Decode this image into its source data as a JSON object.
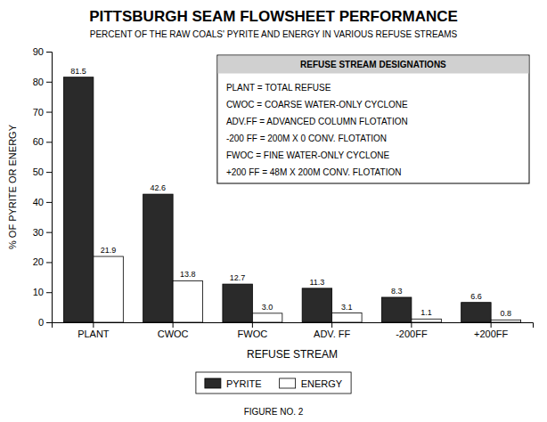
{
  "chart_data": {
    "type": "bar",
    "title": "PITTSBURGH SEAM FLOWSHEET PERFORMANCE",
    "subtitle": "PERCENT OF THE RAW COALS' PYRITE AND ENERGY IN VARIOUS REFUSE STREAMS",
    "categories": [
      "PLANT",
      "CWOC",
      "FWOC",
      "ADV. FF",
      "-200FF",
      "+200FF"
    ],
    "series": [
      {
        "name": "PYRITE",
        "color": "#2a2a2a",
        "values": [
          81.5,
          42.6,
          12.7,
          11.3,
          8.3,
          6.6
        ]
      },
      {
        "name": "ENERGY",
        "color": "#ffffff",
        "values": [
          21.9,
          13.8,
          3.0,
          3.1,
          1.1,
          0.8
        ],
        "value_labels": [
          "21.9",
          "13.8",
          "3.0",
          "3.1",
          "1.1",
          "0.8"
        ]
      }
    ],
    "ylabel": "% OF PYRITE OR ENERGY",
    "xlabel": "REFUSE STREAM",
    "ylim": [
      0,
      90
    ],
    "yticks": [
      0,
      10,
      20,
      30,
      40,
      50,
      60,
      70,
      80,
      90
    ],
    "data_labels": true,
    "legend": "bottom",
    "annotations": {
      "title": "REFUSE STREAM DESIGNATIONS",
      "lines": [
        "PLANT = TOTAL REFUSE",
        "CWOC = COARSE WATER-ONLY CYCLONE",
        "ADV.FF = ADVANCED COLUMN FLOTATION",
        "-200 FF = 200M X 0 CONV. FLOTATION",
        "FWOC = FINE WATER-ONLY CYCLONE",
        "+200 FF = 48M X 200M CONV. FLOTATION"
      ]
    },
    "caption": "FIGURE NO. 2"
  }
}
